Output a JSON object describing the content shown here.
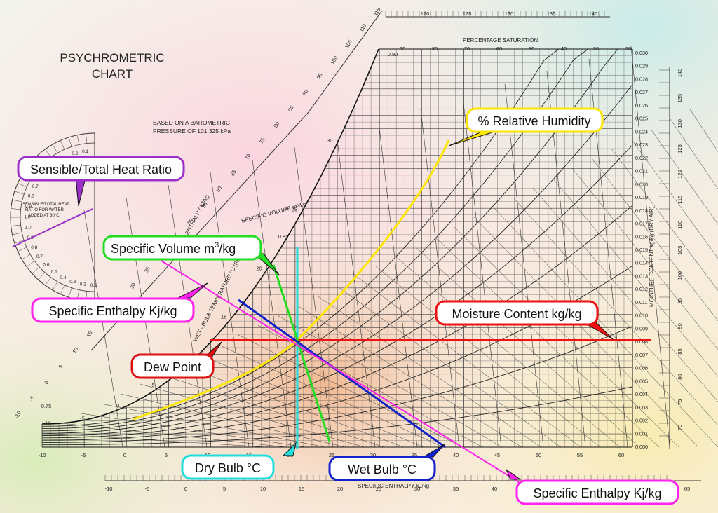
{
  "chart": {
    "title_line1": "PSYCHROMETRIC",
    "title_line2": "CHART",
    "baro_line1": "BASED ON A BAROMETRIC",
    "baro_line2": "PRESSURE OF 101.325 kPa",
    "pct_saturation_label": "PERCENTAGE SATURATION",
    "pct_saturation_ticks": [
      "90",
      "80",
      "70",
      "60",
      "50",
      "40",
      "30",
      "20"
    ],
    "moisture_axis_label": "MOISTURE CONTENT  kg/kg  (DRY AIR)",
    "moisture_ticks": [
      "0.030",
      "0.029",
      "0.028",
      "0.027",
      "0.026",
      "0.025",
      "0.024",
      "0.023",
      "0.022",
      "0.021",
      "0.020",
      "0.019",
      "0.018",
      "0.017",
      "0.016",
      "0.015",
      "0.014",
      "0.013",
      "0.012",
      "0.011",
      "0.010",
      "0.009",
      "0.008",
      "0.007",
      "0.006",
      "0.005",
      "0.004",
      "0.003",
      "0.002",
      "0.001",
      "0.000"
    ],
    "dry_bulb_ticks": [
      "-10",
      "-5",
      "0",
      "5",
      "10",
      "15",
      "20",
      "25",
      "30",
      "35",
      "40",
      "45",
      "50",
      "55",
      "60"
    ],
    "bottom_enthalpy_ticks": [
      "-10",
      "-5",
      "0",
      "5",
      "10",
      "15",
      "20",
      "25",
      "30",
      "35",
      "40",
      "45",
      "50",
      "55",
      "60",
      "65"
    ],
    "bottom_enthalpy_label": "SPECIFIC ENTHALPY  kJ/kg",
    "top_enthalpy_ticks": [
      "120",
      "125",
      "130",
      "135",
      "140"
    ],
    "right_enthalpy_ticks": [
      "140",
      "135",
      "130",
      "125",
      "120",
      "115",
      "110",
      "105",
      "100",
      "95",
      "90",
      "85",
      "80",
      "75",
      "70"
    ],
    "diag_enthalpy_ticks": [
      "115",
      "110",
      "105",
      "100",
      "95",
      "90",
      "85",
      "80",
      "75",
      "70",
      "65",
      "60",
      "55",
      "50",
      "45",
      "40",
      "35",
      "30",
      "25",
      "20",
      "15",
      "10",
      "5",
      "0",
      "-5",
      "-10"
    ],
    "diag_enthalpy_label": "SPECIFIC ENTHALPY  kJ/kg",
    "wet_bulb_axis_label": "WET - BULB TEMPERATURE  °C  (SLING)",
    "wet_bulb_ticks": [
      "30",
      "25",
      "20",
      "15",
      "10",
      "5",
      "0",
      "-5",
      "-10"
    ],
    "specific_volume_label": "SPECIFIC VOLUME  m³/kg",
    "specific_volume_ticks": [
      "0.90",
      "0.85",
      "0.80",
      "0.75"
    ],
    "shr_label_line1": "SENSIBLE/TOTAL HEAT",
    "shr_label_line2": "RATIO FOR WATER",
    "shr_label_line3": "ADDED AT 30°C",
    "shr_ticks_top": [
      "0.1",
      "0.2",
      "0.3",
      "0.4",
      "0.5",
      "0.6",
      "0.7",
      "0.8",
      "0.9",
      "1.0"
    ],
    "shr_ticks_bottom": [
      "1.0",
      "0.9",
      "0.8",
      "0.7",
      "0.6",
      "0.5",
      "0.4",
      "0.3",
      "0.2",
      "0.1"
    ]
  },
  "callouts": {
    "relative_humidity": "% Relative Humidity",
    "shr": "Sensible/Total Heat Ratio",
    "specific_volume_prefix": "Specific Volume  m",
    "specific_volume_sup": "3",
    "specific_volume_suffix": "/kg",
    "enthalpy_left": "Specific Enthalpy Kj/kg",
    "moisture_content": "Moisture Content kg/kg",
    "dew_point": "Dew Point",
    "dry_bulb": "Dry Bulb °C",
    "wet_bulb": "Wet Bulb °C",
    "enthalpy_bottom": "Specific Enthalpy Kj/kg"
  },
  "colors": {
    "relative_humidity": "#ffe600",
    "shr": "#9b30c8",
    "specific_volume": "#22dd22",
    "enthalpy": "#ff22ee",
    "moisture_content": "#ee1111",
    "dew_point": "#dd1111",
    "dry_bulb": "#22dddd",
    "wet_bulb": "#1122cc"
  }
}
